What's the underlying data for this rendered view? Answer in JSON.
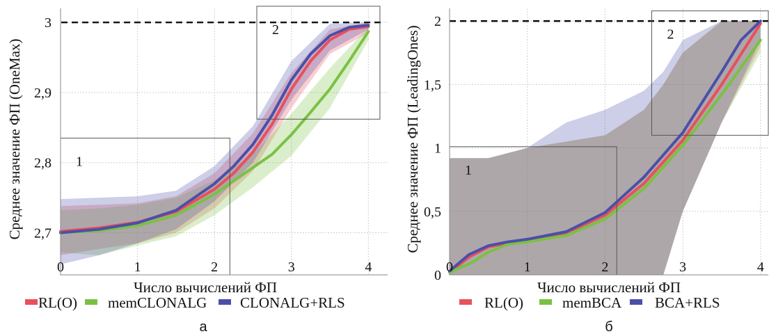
{
  "chart_data": [
    {
      "type": "line",
      "panel_label": "а",
      "xlabel": "Число вычислений ФП",
      "ylabel": "Среднее значение ФП (OneMax)",
      "xlim": [
        0,
        4.25
      ],
      "ylim": [
        2.64,
        3.02
      ],
      "xticks": [
        "0",
        "1",
        "2",
        "3",
        "4"
      ],
      "yticks": [
        {
          "v": 2.7,
          "label": "2,7"
        },
        {
          "v": 2.8,
          "label": "2,8"
        },
        {
          "v": 2.9,
          "label": "2,9"
        },
        {
          "v": 3.0,
          "label": "3"
        }
      ],
      "reference_line": 3.0,
      "grid": true,
      "zones": [
        {
          "label": "1",
          "x": [
            0,
            2.2
          ],
          "y": [
            2.64,
            2.835
          ]
        },
        {
          "label": "2",
          "x": [
            2.55,
            4.15
          ],
          "y": [
            2.862,
            3.023
          ]
        }
      ],
      "series": [
        {
          "name": "RL(O)",
          "color": "#e8505b",
          "points": [
            [
              0,
              2.702
            ],
            [
              0.5,
              2.707
            ],
            [
              1,
              2.715
            ],
            [
              1.5,
              2.73
            ],
            [
              2,
              2.762
            ],
            [
              2.25,
              2.785
            ],
            [
              2.5,
              2.815
            ],
            [
              2.75,
              2.855
            ],
            [
              3,
              2.905
            ],
            [
              3.25,
              2.945
            ],
            [
              3.5,
              2.975
            ],
            [
              3.75,
              2.99
            ],
            [
              4,
              2.994
            ]
          ],
          "band": [
            [
              0,
              2.668,
              2.738
            ],
            [
              0.5,
              2.677,
              2.74
            ],
            [
              1,
              2.685,
              2.742
            ],
            [
              1.5,
              2.7,
              2.752
            ],
            [
              2,
              2.735,
              2.785
            ],
            [
              2.5,
              2.788,
              2.842
            ],
            [
              3,
              2.878,
              2.928
            ],
            [
              3.5,
              2.955,
              2.99
            ],
            [
              4,
              2.985,
              3.0
            ]
          ]
        },
        {
          "name": "memCLONALG",
          "color": "#7ac143",
          "points": [
            [
              0,
              2.7
            ],
            [
              0.5,
              2.703
            ],
            [
              1,
              2.71
            ],
            [
              1.5,
              2.725
            ],
            [
              2,
              2.755
            ],
            [
              2.5,
              2.793
            ],
            [
              2.75,
              2.812
            ],
            [
              3,
              2.84
            ],
            [
              3.25,
              2.872
            ],
            [
              3.5,
              2.905
            ],
            [
              3.75,
              2.945
            ],
            [
              4,
              2.987
            ]
          ],
          "band": [
            [
              0,
              2.672,
              2.732
            ],
            [
              0.5,
              2.668,
              2.735
            ],
            [
              1,
              2.682,
              2.74
            ],
            [
              1.5,
              2.695,
              2.75
            ],
            [
              2,
              2.725,
              2.775
            ],
            [
              2.5,
              2.765,
              2.812
            ],
            [
              3,
              2.81,
              2.87
            ],
            [
              3.5,
              2.878,
              2.935
            ],
            [
              4,
              2.975,
              2.993
            ]
          ]
        },
        {
          "name": "CLONALG+RLS",
          "color": "#4c4fa8",
          "points": [
            [
              0,
              2.7
            ],
            [
              0.5,
              2.705
            ],
            [
              1,
              2.714
            ],
            [
              1.5,
              2.732
            ],
            [
              2,
              2.77
            ],
            [
              2.25,
              2.795
            ],
            [
              2.5,
              2.826
            ],
            [
              2.75,
              2.868
            ],
            [
              3,
              2.918
            ],
            [
              3.25,
              2.955
            ],
            [
              3.5,
              2.981
            ],
            [
              3.75,
              2.993
            ],
            [
              4,
              2.996
            ]
          ],
          "band": [
            [
              0,
              2.655,
              2.748
            ],
            [
              0.5,
              2.668,
              2.75
            ],
            [
              1,
              2.685,
              2.752
            ],
            [
              1.5,
              2.705,
              2.76
            ],
            [
              2,
              2.745,
              2.795
            ],
            [
              2.5,
              2.8,
              2.852
            ],
            [
              3,
              2.89,
              2.945
            ],
            [
              3.5,
              2.96,
              2.998
            ],
            [
              4,
              2.99,
              3.0
            ]
          ]
        }
      ]
    },
    {
      "type": "line",
      "panel_label": "б",
      "xlabel": "Число вычислений ФП",
      "ylabel": "Среднее значение ФП (LeadingOnes)",
      "xlim": [
        0,
        4.1
      ],
      "ylim": [
        0,
        2.1
      ],
      "xticks": [
        "0",
        "1",
        "2",
        "3",
        "4"
      ],
      "yticks": [
        {
          "v": 0,
          "label": "0"
        },
        {
          "v": 0.5,
          "label": "0,5"
        },
        {
          "v": 1,
          "label": "1"
        },
        {
          "v": 1.5,
          "label": "1,5"
        },
        {
          "v": 2,
          "label": "2"
        }
      ],
      "reference_line": 2.0,
      "grid": true,
      "zones": [
        {
          "label": "1",
          "x": [
            0,
            2.15
          ],
          "y": [
            0,
            1.01
          ]
        },
        {
          "label": "2",
          "x": [
            2.6,
            4.1
          ],
          "y": [
            1.1,
            2.08
          ]
        }
      ],
      "series": [
        {
          "name": "RL(O)",
          "color": "#e8505b",
          "points": [
            [
              0,
              0.02
            ],
            [
              0.25,
              0.14
            ],
            [
              0.5,
              0.22
            ],
            [
              0.75,
              0.25
            ],
            [
              1,
              0.27
            ],
            [
              1.5,
              0.33
            ],
            [
              2,
              0.47
            ],
            [
              2.5,
              0.72
            ],
            [
              3,
              1.06
            ],
            [
              3.5,
              1.5
            ],
            [
              4,
              1.98
            ]
          ],
          "band": [
            [
              0,
              0,
              0.92
            ],
            [
              0.5,
              0,
              0.92
            ],
            [
              1,
              0,
              1.0
            ],
            [
              1.5,
              0,
              1.05
            ],
            [
              2,
              0,
              1.1
            ],
            [
              2.5,
              0,
              1.3
            ],
            [
              2.75,
              0,
              1.5
            ],
            [
              3,
              0.5,
              1.75
            ],
            [
              3.5,
              1.2,
              2.0
            ],
            [
              4,
              1.8,
              2.0
            ]
          ]
        },
        {
          "name": "memBCA",
          "color": "#7ac143",
          "points": [
            [
              0,
              0.02
            ],
            [
              0.3,
              0.1
            ],
            [
              0.5,
              0.18
            ],
            [
              0.75,
              0.24
            ],
            [
              1,
              0.26
            ],
            [
              1.5,
              0.31
            ],
            [
              2,
              0.44
            ],
            [
              2.5,
              0.68
            ],
            [
              3,
              1.02
            ],
            [
              3.5,
              1.42
            ],
            [
              4,
              1.85
            ]
          ],
          "band": [
            [
              0,
              0,
              0.92
            ],
            [
              0.5,
              0,
              0.92
            ],
            [
              1,
              0,
              1.0
            ],
            [
              1.5,
              0,
              1.05
            ],
            [
              2,
              0,
              1.1
            ],
            [
              2.5,
              0,
              1.3
            ],
            [
              2.75,
              0,
              1.5
            ],
            [
              3,
              0.5,
              1.75
            ],
            [
              3.5,
              1.2,
              2.0
            ],
            [
              4,
              1.75,
              2.0
            ]
          ]
        },
        {
          "name": "BCA+RLS",
          "color": "#4c4fa8",
          "points": [
            [
              0,
              0.03
            ],
            [
              0.25,
              0.16
            ],
            [
              0.5,
              0.23
            ],
            [
              0.75,
              0.26
            ],
            [
              1,
              0.28
            ],
            [
              1.5,
              0.34
            ],
            [
              2,
              0.49
            ],
            [
              2.5,
              0.77
            ],
            [
              3,
              1.12
            ],
            [
              3.5,
              1.6
            ],
            [
              3.75,
              1.85
            ],
            [
              4,
              2.0
            ]
          ],
          "band": [
            [
              0,
              0,
              0.92
            ],
            [
              0.5,
              0,
              0.92
            ],
            [
              1,
              0,
              1.0
            ],
            [
              1.5,
              0,
              1.2
            ],
            [
              2,
              0,
              1.3
            ],
            [
              2.5,
              0,
              1.45
            ],
            [
              2.75,
              0,
              1.6
            ],
            [
              3,
              0.5,
              1.85
            ],
            [
              3.5,
              1.2,
              2.0
            ],
            [
              4,
              1.85,
              2.0
            ]
          ]
        }
      ]
    }
  ]
}
